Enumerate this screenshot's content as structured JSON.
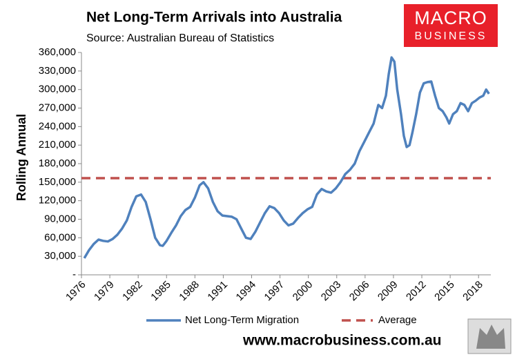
{
  "chart_data": {
    "type": "line",
    "title": "Net Long-Term Arrivals into Australia",
    "subtitle": "Source: Australian Bureau of Statistics",
    "y_label": "Rolling Annual",
    "logo": {
      "line1": "MACRO",
      "line2": "BUSINESS"
    },
    "website": "www.macrobusiness.com.au",
    "x": [
      1976.3,
      1976.8,
      1977.3,
      1977.8,
      1978.3,
      1978.8,
      1979.3,
      1979.8,
      1980.3,
      1980.8,
      1981.3,
      1981.8,
      1982.3,
      1982.8,
      1983.3,
      1983.8,
      1984.3,
      1984.6,
      1985.0,
      1985.5,
      1986.0,
      1986.5,
      1987.0,
      1987.5,
      1988.0,
      1988.5,
      1988.9,
      1989.4,
      1989.9,
      1990.4,
      1990.9,
      1991.4,
      1991.9,
      1992.4,
      1992.9,
      1993.4,
      1993.9,
      1994.4,
      1994.9,
      1995.4,
      1995.9,
      1996.4,
      1996.9,
      1997.4,
      1997.9,
      1998.4,
      1998.9,
      1999.4,
      1999.9,
      2000.4,
      2000.9,
      2001.4,
      2001.9,
      2002.4,
      2002.9,
      2003.4,
      2003.9,
      2004.4,
      2004.9,
      2005.4,
      2005.9,
      2006.4,
      2006.9,
      2007.4,
      2007.8,
      2008.2,
      2008.5,
      2008.8,
      2009.1,
      2009.4,
      2009.8,
      2010.1,
      2010.4,
      2010.7,
      2011.0,
      2011.4,
      2011.8,
      2012.2,
      2012.6,
      2013.0,
      2013.4,
      2013.8,
      2014.2,
      2014.6,
      2014.9,
      2015.3,
      2015.7,
      2016.1,
      2016.5,
      2016.9,
      2017.3,
      2017.7,
      2018.1,
      2018.5,
      2018.8,
      2019.1
    ],
    "series": [
      {
        "name": "Net Long-Term Migration",
        "color": "#4f81bd",
        "values": [
          27000,
          40000,
          50000,
          57000,
          55000,
          54000,
          58000,
          65000,
          75000,
          88000,
          110000,
          127000,
          130000,
          118000,
          90000,
          60000,
          48000,
          47000,
          55000,
          68000,
          80000,
          95000,
          105000,
          110000,
          125000,
          145000,
          150000,
          140000,
          118000,
          103000,
          96000,
          95000,
          94000,
          90000,
          75000,
          60000,
          58000,
          70000,
          85000,
          100000,
          111000,
          108000,
          100000,
          88000,
          80000,
          83000,
          92000,
          100000,
          106000,
          110000,
          130000,
          139000,
          135000,
          133000,
          140000,
          150000,
          163000,
          170000,
          180000,
          200000,
          215000,
          230000,
          245000,
          275000,
          270000,
          290000,
          325000,
          352000,
          345000,
          300000,
          260000,
          225000,
          207000,
          210000,
          230000,
          260000,
          295000,
          310000,
          312000,
          313000,
          290000,
          270000,
          265000,
          255000,
          245000,
          260000,
          265000,
          278000,
          275000,
          265000,
          278000,
          282000,
          287000,
          290000,
          300000,
          293000
        ]
      }
    ],
    "average": {
      "name": "Average",
      "color": "#c0504d",
      "value": 156500
    },
    "xlim": [
      1976,
      2019.3
    ],
    "xticks": [
      1976,
      1979,
      1982,
      1985,
      1988,
      1991,
      1994,
      1997,
      2000,
      2003,
      2006,
      2009,
      2012,
      2015,
      2018
    ],
    "ylim": [
      0,
      360000
    ],
    "yticks": [
      {
        "value": 0,
        "label": "-"
      },
      {
        "value": 30000,
        "label": "30,000"
      },
      {
        "value": 60000,
        "label": "60,000"
      },
      {
        "value": 90000,
        "label": "90,000"
      },
      {
        "value": 120000,
        "label": "120,000"
      },
      {
        "value": 150000,
        "label": "150,000"
      },
      {
        "value": 180000,
        "label": "180,000"
      },
      {
        "value": 210000,
        "label": "210,000"
      },
      {
        "value": 240000,
        "label": "240,000"
      },
      {
        "value": 270000,
        "label": "270,000"
      },
      {
        "value": 300000,
        "label": "300,000"
      },
      {
        "value": 330000,
        "label": "330,000"
      },
      {
        "value": 360000,
        "label": "360,000"
      }
    ]
  }
}
